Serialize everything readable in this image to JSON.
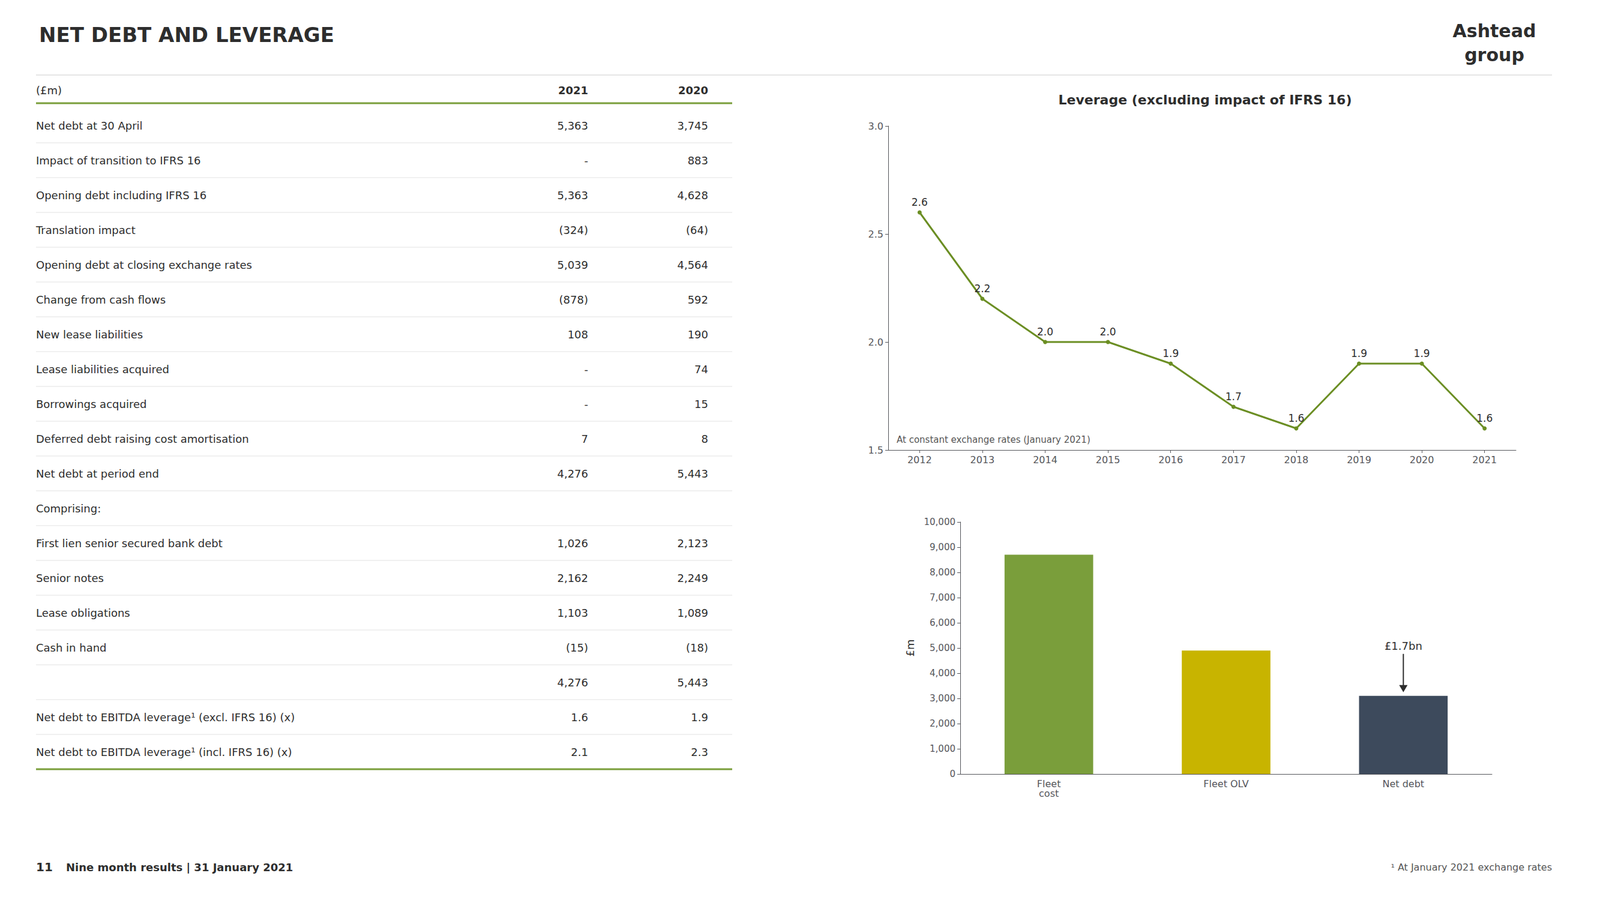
{
  "title": "NET DEBT AND LEVERAGE",
  "logo": [
    "Ashtead",
    "group"
  ],
  "footer": [
    "11",
    "Nine month results | 31 January 2021"
  ],
  "footnote": "¹ At January 2021 exchange rates",
  "chart_data": [
    {
      "type": "table",
      "color": "#7a9e3b",
      "header": "(£m)",
      "categories": [
        "Net debt at 30 April",
        "Impact of transition to IFRS 16",
        "Opening debt including IFRS 16",
        "Translation impact",
        "Opening debt at closing exchange rates",
        "Change from cash flows",
        "New lease liabilities",
        "Lease liabilities acquired",
        "Borrowings acquired",
        "Deferred debt raising cost amortisation",
        "Net debt at period end",
        "Comprising:",
        "First lien senior secured bank debt",
        "Senior notes",
        "Lease obligations",
        "Cash in hand",
        null,
        "Net debt to EBITDA leverage¹ (excl. IFRS 16) (x)",
        "Net debt to EBITDA leverage¹ (incl. IFRS 16) (x)"
      ],
      "series": [
        {
          "name": "2021",
          "values": [
            "5,363",
            "-",
            "5,363",
            "(324)",
            "5,039",
            "(878)",
            "108",
            "-",
            "-",
            "7",
            "4,276",
            null,
            "1,026",
            "2,162",
            "1,103",
            "(15)",
            "4,276",
            "1.6",
            "2.1"
          ]
        },
        {
          "name": "2020",
          "values": [
            "3,745",
            "883",
            "4,628",
            "(64)",
            "4,564",
            "592",
            "190",
            "74",
            "15",
            "8",
            "5,443",
            null,
            "2,123",
            "2,249",
            "1,089",
            "(18)",
            "5,443",
            "1.9",
            "2.3"
          ]
        }
      ]
    },
    {
      "type": "line",
      "title": "Leverage (excluding impact of IFRS 16)",
      "x": [
        2012,
        2013,
        2014,
        2015,
        2016,
        2017,
        2018,
        2019,
        2020,
        2021
      ],
      "values": [
        2.6,
        2.2,
        2.0,
        2.0,
        1.9,
        1.7,
        1.6,
        1.9,
        1.9,
        1.6
      ],
      "value_labels": [
        "2.6",
        "2.2",
        "2.0",
        "2.0",
        "1.9",
        "1.7",
        "1.6",
        "1.9",
        "1.9",
        "1.6"
      ],
      "data_labels": true,
      "color": "#6b8e23",
      "xlim": [
        2011.5,
        2021.5
      ],
      "xticks": [
        2012,
        2013,
        2014,
        2015,
        2016,
        2017,
        2018,
        2019,
        2020,
        2021
      ],
      "ylim": [
        1.5,
        3.0
      ],
      "yticks": [
        1.5,
        {
          "value": 2.0,
          "label": "2.0"
        },
        2.5,
        {
          "value": 3.0,
          "label": "3.0"
        }
      ],
      "grid": false,
      "annotations": [
        {
          "text": "At constant exchange rates (January 2021)"
        }
      ]
    },
    {
      "type": "bar",
      "categories": [
        "Fleet\ncost",
        "Fleet OLV",
        "Net debt"
      ],
      "values": [
        8700,
        4900,
        3100
      ],
      "colors": [
        "#7a9e3b",
        "#c8b400",
        "#3d4a5c"
      ],
      "ylabel": "£m",
      "ylim": [
        0,
        10000
      ],
      "yticks": [
        0,
        {
          "value": 1000,
          "label": "1,000"
        },
        {
          "value": 2000,
          "label": "2,000"
        },
        {
          "value": 3000,
          "label": "3,000"
        },
        {
          "value": 4000,
          "label": "4,000"
        },
        {
          "value": 5000,
          "label": "5,000"
        },
        {
          "value": 6000,
          "label": "6,000"
        },
        {
          "value": 7000,
          "label": "7,000"
        },
        {
          "value": 8000,
          "label": "8,000"
        },
        {
          "value": 9000,
          "label": "9,000"
        },
        {
          "value": 10000,
          "label": "10,000"
        }
      ],
      "grid": false,
      "annotations": [
        {
          "text": "£1.7bn",
          "x": "Net debt"
        }
      ]
    }
  ]
}
